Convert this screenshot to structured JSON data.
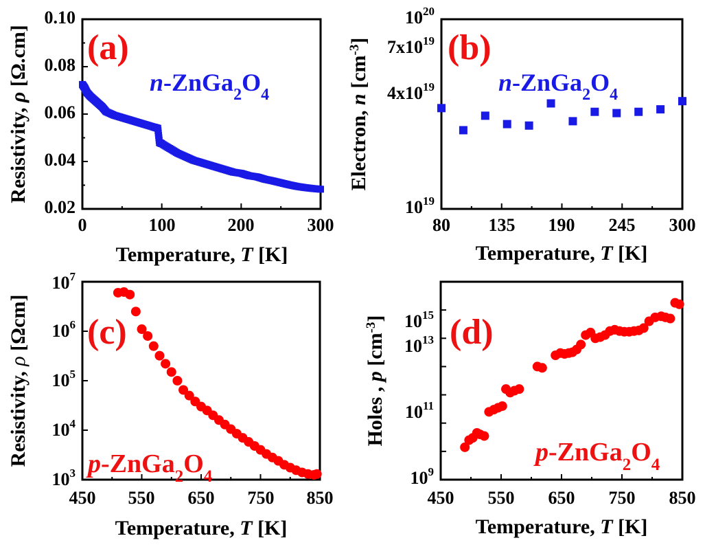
{
  "chart_data": [
    {
      "panel": "(a)",
      "type": "line",
      "material_label": "n-ZnGa2O4",
      "xlabel": "Temperature, T [K]",
      "ylabel": "Resistivity, ρ [Ω.cm]",
      "xlim": [
        0,
        300
      ],
      "ylim": [
        0.02,
        0.1
      ],
      "xticks": [
        "0",
        "100",
        "200",
        "300"
      ],
      "yticks": [
        "0.02",
        "0.04",
        "0.06",
        "0.08",
        "0.10"
      ],
      "color": "#1a1ae6",
      "marker": "square",
      "series": [
        {
          "x": [
            0,
            3,
            6,
            10,
            15,
            20,
            25,
            30,
            40,
            50,
            60,
            70,
            80,
            90,
            95,
            97,
            100,
            110,
            120,
            130,
            140,
            150,
            160,
            170,
            180,
            190,
            200,
            210,
            220,
            230,
            240,
            250,
            260,
            270,
            280,
            290,
            300
          ],
          "y": [
            0.0725,
            0.071,
            0.069,
            0.0675,
            0.066,
            0.0645,
            0.063,
            0.061,
            0.0595,
            0.0585,
            0.0575,
            0.0565,
            0.0555,
            0.0545,
            0.054,
            0.048,
            0.0475,
            0.0455,
            0.0435,
            0.042,
            0.0405,
            0.0395,
            0.0385,
            0.0375,
            0.0365,
            0.0355,
            0.035,
            0.034,
            0.0335,
            0.0325,
            0.0318,
            0.031,
            0.0302,
            0.0295,
            0.029,
            0.0286,
            0.0283
          ]
        }
      ]
    },
    {
      "panel": "(b)",
      "type": "scatter",
      "material_label": "n-ZnGa2O4",
      "xlabel": "Temperature, T [K]",
      "ylabel": "Electron, n [cm-3]",
      "xlim": [
        80,
        300
      ],
      "ylim": [
        1e+19,
        1e+20
      ],
      "yscale": "log",
      "xticks": [
        "80",
        "135",
        "190",
        "245",
        "300"
      ],
      "yticks": [
        "10^19",
        "4x10^19",
        "7x10^19",
        "10^20"
      ],
      "color": "#1a1ae6",
      "marker": "square",
      "series": [
        {
          "x": [
            80,
            100,
            120,
            140,
            160,
            180,
            200,
            220,
            240,
            260,
            280,
            300
          ],
          "y": [
            3.4e+19,
            2.6e+19,
            3.1e+19,
            2.8e+19,
            2.75e+19,
            3.6e+19,
            2.9e+19,
            3.25e+19,
            3.2e+19,
            3.25e+19,
            3.35e+19,
            3.7e+19
          ]
        }
      ]
    },
    {
      "panel": "(c)",
      "type": "scatter",
      "material_label": "p-ZnGa2O4",
      "xlabel": "Temperature, T [K]",
      "ylabel": "Resistivity, ρ [Ωcm]",
      "xlim": [
        450,
        850
      ],
      "ylim": [
        1000,
        10000000
      ],
      "yscale": "log",
      "xticks": [
        "450",
        "550",
        "650",
        "750",
        "850"
      ],
      "yticks": [
        "10^3",
        "10^4",
        "10^5",
        "10^6",
        "10^7"
      ],
      "color": "#ff0000",
      "marker": "circle",
      "series": [
        {
          "x": [
            510,
            520,
            530,
            540,
            550,
            560,
            570,
            580,
            590,
            600,
            610,
            620,
            630,
            640,
            650,
            660,
            670,
            680,
            690,
            700,
            710,
            720,
            730,
            740,
            750,
            760,
            770,
            780,
            790,
            800,
            810,
            820,
            830,
            840,
            845
          ],
          "y": [
            6000000,
            6200000,
            5500000,
            2500000,
            1100000,
            800000,
            500000,
            320000,
            220000,
            150000,
            100000,
            65000,
            50000,
            38000,
            30000,
            25000,
            20000,
            16000,
            13000,
            10500,
            8500,
            7000,
            5800,
            4800,
            4000,
            3300,
            2800,
            2400,
            2000,
            1750,
            1550,
            1400,
            1300,
            1250,
            1300
          ]
        }
      ]
    },
    {
      "panel": "(d)",
      "type": "scatter",
      "material_label": "p-ZnGa2O4",
      "xlabel": "Temperature, T [K]",
      "ylabel": "Holes , p [cm-3]",
      "xlim": [
        450,
        850
      ],
      "ylim": [
        1000000000,
        10000000000000000
      ],
      "yscale": "log",
      "xticks": [
        "450",
        "550",
        "650",
        "750",
        "850"
      ],
      "yticks": [
        "10^9",
        "10^11",
        "10^13",
        "10^15"
      ],
      "color": "#ff0000",
      "marker": "circle",
      "series": [
        {
          "x": [
            490,
            497,
            503,
            510,
            515,
            522,
            530,
            538,
            545,
            552,
            558,
            565,
            572,
            580,
            610,
            618,
            640,
            648,
            655,
            662,
            668,
            675,
            682,
            690,
            698,
            706,
            714,
            722,
            730,
            738,
            746,
            754,
            762,
            770,
            778,
            786,
            795,
            805,
            815,
            822,
            830,
            838,
            845
          ],
          "y": [
            14000000000,
            25000000000,
            30000000000,
            45000000000,
            40000000000,
            35000000000,
            250000000000,
            300000000000,
            350000000000,
            400000000000,
            1600000000000,
            1200000000000,
            1400000000000,
            1600000000000,
            10000000000000,
            9000000000000,
            25000000000000,
            30000000000000,
            28000000000000,
            30000000000000,
            32000000000000,
            40000000000000,
            60000000000000,
            130000000000000,
            160000000000000,
            100000000000000,
            110000000000000,
            130000000000000,
            180000000000000,
            200000000000000,
            180000000000000,
            170000000000000,
            170000000000000,
            180000000000000,
            190000000000000,
            230000000000000,
            400000000000000,
            550000000000000,
            600000000000000,
            550000000000000,
            500000000000000,
            1800000000000000,
            1600000000000000
          ]
        }
      ]
    }
  ]
}
